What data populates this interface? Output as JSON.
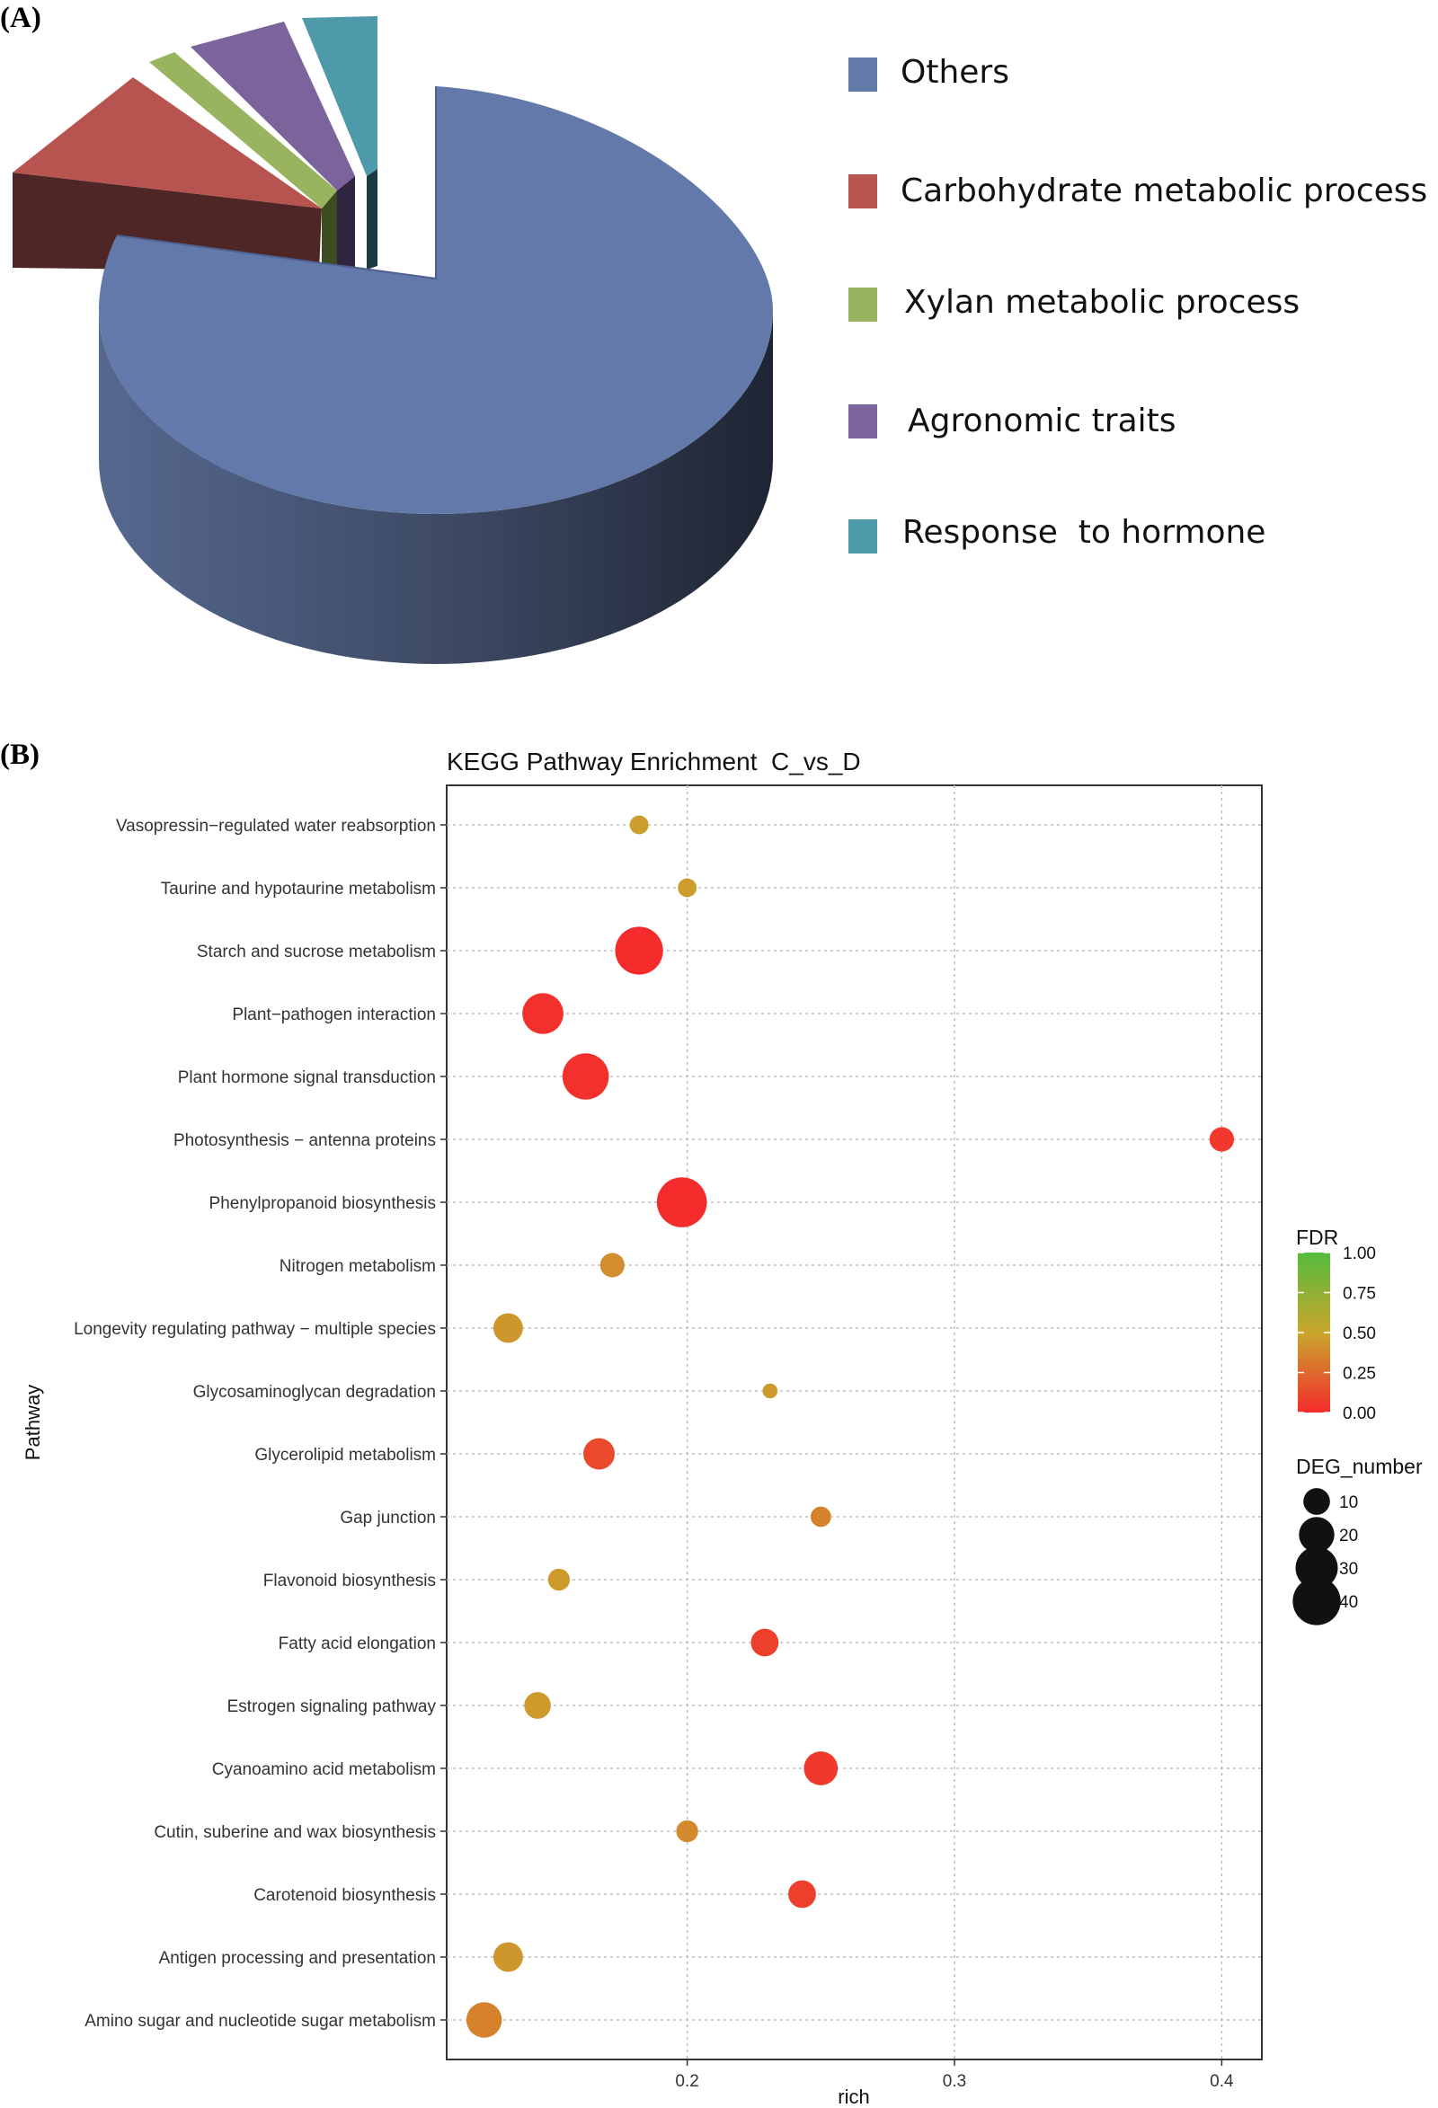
{
  "chart_data": [
    {
      "panel": "(A)",
      "type": "pie",
      "slices": [
        {
          "label": "Others",
          "value": 75,
          "color": "#6279a9"
        },
        {
          "label": "Carbohydrate metabolic process",
          "value": 11,
          "color": "#b85450"
        },
        {
          "label": "Xylan metabolic process",
          "value": 2,
          "color": "#98b45e"
        },
        {
          "label": "Agronomic traits",
          "value": 6,
          "color": "#7b649b"
        },
        {
          "label": "Response  to hormone",
          "value": 6,
          "color": "#4f9aaa"
        }
      ]
    },
    {
      "panel": "(B)",
      "type": "scatter",
      "title": "KEGG Pathway Enrichment  C_vs_D",
      "xlabel": "rich",
      "ylabel": "Pathway",
      "xlim": [
        0.11,
        0.415
      ],
      "xticks": [
        "0.2",
        "0.3",
        "0.4"
      ],
      "xtick_values": [
        0.2,
        0.3,
        0.4
      ],
      "grid": true,
      "points": [
        {
          "pathway": "Vasopressin−regulated water reabsorption",
          "rich": 0.182,
          "fdr": 0.47,
          "deg": 4
        },
        {
          "pathway": "Taurine and hypotaurine metabolism",
          "rich": 0.2,
          "fdr": 0.47,
          "deg": 4
        },
        {
          "pathway": "Starch and sucrose metabolism",
          "rich": 0.182,
          "fdr": 0.0,
          "deg": 40
        },
        {
          "pathway": "Plant−pathogen interaction",
          "rich": 0.146,
          "fdr": 0.02,
          "deg": 28
        },
        {
          "pathway": "Plant hormone signal transduction",
          "rich": 0.162,
          "fdr": 0.02,
          "deg": 37
        },
        {
          "pathway": "Photosynthesis − antenna proteins",
          "rich": 0.4,
          "fdr": 0.05,
          "deg": 8
        },
        {
          "pathway": "Phenylpropanoid biosynthesis",
          "rich": 0.198,
          "fdr": 0.0,
          "deg": 44
        },
        {
          "pathway": "Nitrogen metabolism",
          "rich": 0.172,
          "fdr": 0.4,
          "deg": 8
        },
        {
          "pathway": "Longevity regulating pathway − multiple species",
          "rich": 0.133,
          "fdr": 0.44,
          "deg": 13
        },
        {
          "pathway": "Glycosaminoglycan degradation",
          "rich": 0.231,
          "fdr": 0.45,
          "deg": 2
        },
        {
          "pathway": "Glycerolipid metabolism",
          "rich": 0.167,
          "fdr": 0.12,
          "deg": 15
        },
        {
          "pathway": "Gap junction",
          "rich": 0.25,
          "fdr": 0.35,
          "deg": 5
        },
        {
          "pathway": "Flavonoid biosynthesis",
          "rich": 0.152,
          "fdr": 0.45,
          "deg": 6
        },
        {
          "pathway": "Fatty acid elongation",
          "rich": 0.229,
          "fdr": 0.08,
          "deg": 11
        },
        {
          "pathway": "Estrogen signaling pathway",
          "rich": 0.144,
          "fdr": 0.45,
          "deg": 10
        },
        {
          "pathway": "Cyanoamino acid metabolism",
          "rich": 0.25,
          "fdr": 0.05,
          "deg": 18
        },
        {
          "pathway": "Cutin, suberine and wax biosynthesis",
          "rich": 0.2,
          "fdr": 0.38,
          "deg": 6
        },
        {
          "pathway": "Carotenoid biosynthesis",
          "rich": 0.243,
          "fdr": 0.08,
          "deg": 11
        },
        {
          "pathway": "Antigen processing and presentation",
          "rich": 0.133,
          "fdr": 0.44,
          "deg": 13
        },
        {
          "pathway": "Amino sugar and nucleotide sugar metabolism",
          "rich": 0.124,
          "fdr": 0.35,
          "deg": 20
        }
      ],
      "fdr_legend": {
        "title": "FDR",
        "labels": [
          "1.00",
          "0.75",
          "0.50",
          "0.25",
          "0.00"
        ],
        "values": [
          1.0,
          0.75,
          0.5,
          0.25,
          0.0
        ]
      },
      "size_legend": {
        "title": "DEG_number",
        "labels": [
          "10",
          "20",
          "30",
          "40"
        ],
        "values": [
          10,
          20,
          30,
          40
        ]
      }
    }
  ]
}
